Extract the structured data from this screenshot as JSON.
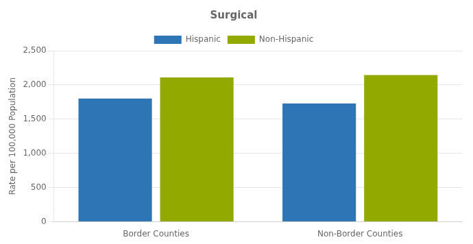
{
  "chart_data": {
    "type": "bar",
    "title": "Surgical",
    "ylabel": "Rate per 100,000 Population",
    "categories": [
      "Border Counties",
      "Non-Border Counties"
    ],
    "series": [
      {
        "name": "Hispanic",
        "color": "#2E75B6",
        "values": [
          1801,
          1730
        ]
      },
      {
        "name": "Non-Hispanic",
        "color": "#92AA00",
        "values": [
          2109,
          2144
        ]
      }
    ],
    "ylim": [
      0,
      2500
    ],
    "yticks": [
      0,
      500,
      {
        "value": 1000,
        "label": "1,000"
      },
      {
        "value": 1500,
        "label": "1,500"
      },
      {
        "value": 2000,
        "label": "2,000"
      },
      {
        "value": 2500,
        "label": "2,500"
      }
    ],
    "grid": true,
    "legend": "top"
  }
}
